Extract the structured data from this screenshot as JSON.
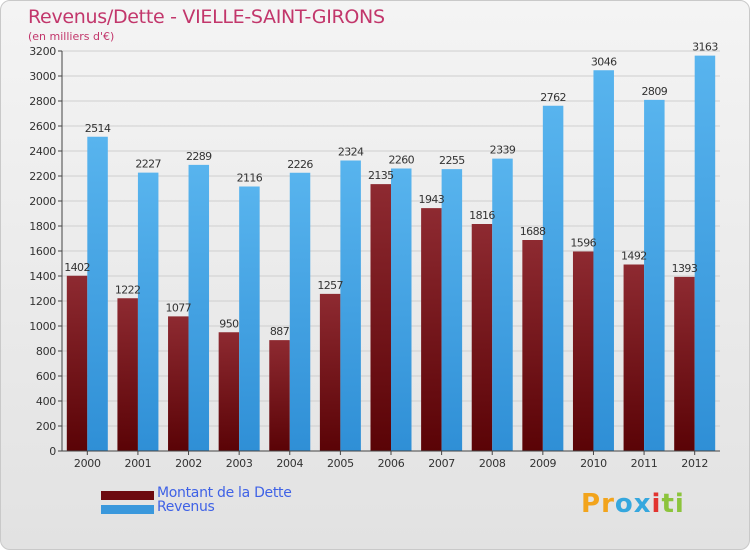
{
  "chart_data": {
    "type": "bar",
    "title": "Revenus/Dette - VIELLE-SAINT-GIRONS",
    "subtitle": "(en milliers d'€)",
    "categories": [
      "2000",
      "2001",
      "2002",
      "2003",
      "2004",
      "2005",
      "2006",
      "2007",
      "2008",
      "2009",
      "2010",
      "2011",
      "2012"
    ],
    "series": [
      {
        "name": "Montant de la Dette",
        "color": "#7a0a12",
        "labels": [
          "1402",
          "1222",
          "1077",
          "950",
          "887",
          "1257",
          "2135",
          "1943",
          "1816",
          "1688",
          "1596",
          "1492",
          "1393"
        ],
        "values": [
          1402,
          1222,
          1077,
          950,
          887,
          1257,
          2135,
          1943,
          1816,
          1688,
          1596,
          1492,
          1393
        ]
      },
      {
        "name": "Revenus",
        "color": "#3a98dc",
        "labels": [
          "2514",
          "2227",
          "2289",
          "2116",
          "2226",
          "2324",
          "2260",
          "2255",
          "2339",
          "2762",
          "3046",
          "2809",
          "3163"
        ],
        "values": [
          2514,
          2227,
          2289,
          2116,
          2226,
          2324,
          2260,
          2255,
          2339,
          2762,
          3046,
          2809,
          3163
        ]
      }
    ],
    "yticks": [
      "0",
      "200",
      "400",
      "600",
      "800",
      "1000",
      "1200",
      "1400",
      "1600",
      "1800",
      "2000",
      "2200",
      "2400",
      "2600",
      "2800",
      "3000",
      "3200"
    ],
    "ylim": [
      0,
      3200
    ],
    "legend": "bottom-left",
    "grid": true
  },
  "logo": {
    "letters": [
      "P",
      "r",
      "o",
      "x",
      "i",
      "t",
      "i"
    ],
    "colors": [
      "#f2a41c",
      "#f2a41c",
      "#35a7de",
      "#35a7de",
      "#e2342f",
      "#8cc43c",
      "#8cc43c"
    ]
  }
}
